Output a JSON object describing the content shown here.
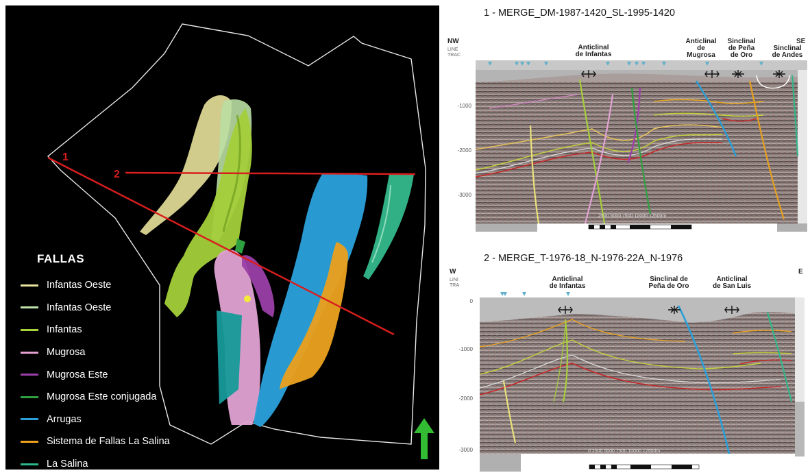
{
  "map3d": {
    "line_labels": [
      "1",
      "2"
    ],
    "legend": {
      "title": "FALLAS",
      "items": [
        {
          "label": "Infantas Oeste",
          "color": "#e8e4a0"
        },
        {
          "label": "Infantas Oeste",
          "color": "#bfe3a8"
        },
        {
          "label": "Infantas",
          "color": "#a6d33a"
        },
        {
          "label": "Mugrosa",
          "color": "#e3a0d0"
        },
        {
          "label": "Mugrosa Este",
          "color": "#9b3fa8"
        },
        {
          "label": "Mugrosa Este conjugada",
          "color": "#2fa040"
        },
        {
          "label": "Arrugas",
          "color": "#2a9fd8"
        },
        {
          "label": "Sistema de Fallas La Salina",
          "color": "#f0a020"
        },
        {
          "label": "La Salina",
          "color": "#2bb58a"
        }
      ]
    },
    "north_arrow_color": "#33bb33"
  },
  "section1": {
    "title": "1 - MERGE_DM-1987-1420_SL-1995-1420",
    "left_dir": "NW",
    "right_dir": "SE",
    "line_trac": [
      "LINE",
      "TRAC"
    ],
    "structures": [
      {
        "lines": [
          "Anticlinal",
          "de Infantas"
        ]
      },
      {
        "lines": [
          "Anticlinal",
          "de",
          "Mugrosa"
        ]
      },
      {
        "lines": [
          "Sinclinal",
          "de Peña",
          "de Oro"
        ]
      },
      {
        "lines": [
          "Sinclinal",
          "de Andes"
        ]
      }
    ],
    "depths": [
      "-1000",
      "-2000",
      "-3000"
    ],
    "scale_text": "2500  5000  7500  10000  12500m"
  },
  "section2": {
    "title": "2 - MERGE_T-1976-18_N-1976-22A_N-1976",
    "left_dir": "W",
    "right_dir": "E",
    "line_trac": [
      "LINI",
      "TRA"
    ],
    "structures": [
      {
        "lines": [
          "Anticlinal",
          "de Infantas"
        ]
      },
      {
        "lines": [
          "Sinclinal de",
          "Peña de Oro"
        ]
      },
      {
        "lines": [
          "Anticlinal",
          "de San Luis"
        ]
      }
    ],
    "depths": [
      "0",
      "-1000",
      "-2000",
      "-3000"
    ],
    "scale_text": "0    2500  5000  7500  10000  12500m"
  }
}
